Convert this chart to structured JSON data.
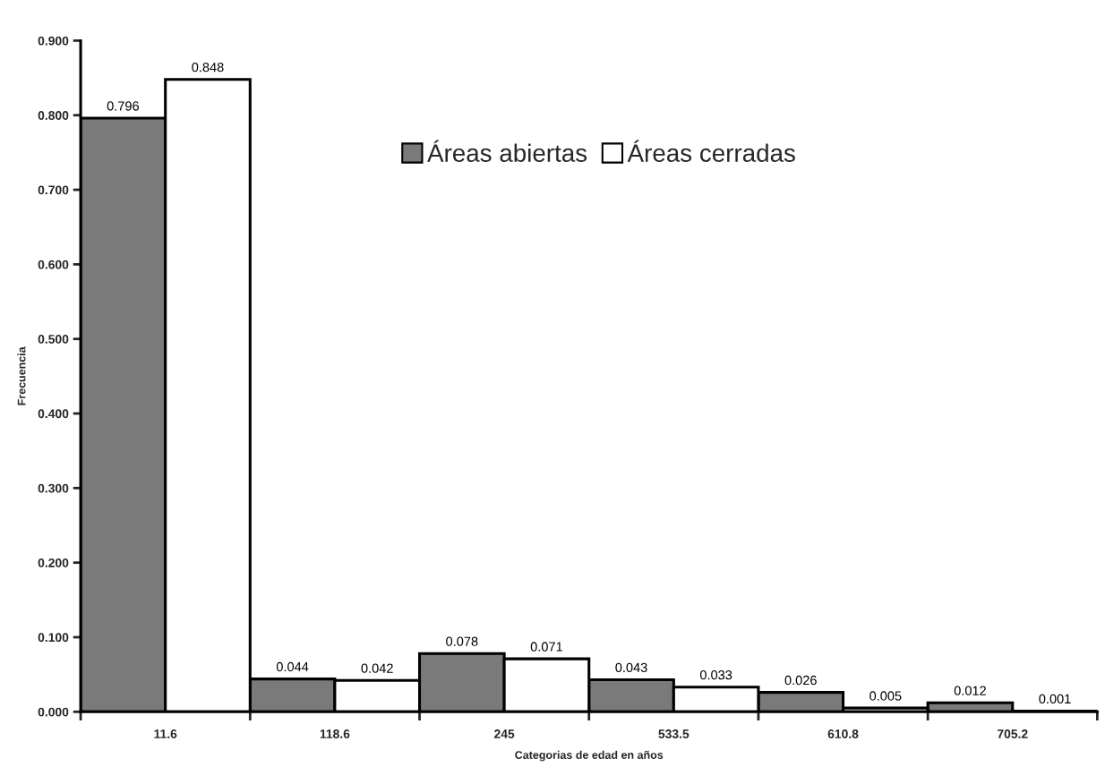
{
  "chart_data": {
    "type": "bar",
    "xlabel": "Categorias de edad en años",
    "ylabel": "Frecuencia",
    "categories": [
      "11.6",
      "118.6",
      "245",
      "533.5",
      "610.8",
      "705.2"
    ],
    "series": [
      {
        "name": "Áreas abiertas",
        "color": "#7a7a7a",
        "values": [
          0.796,
          0.044,
          0.078,
          0.043,
          0.026,
          0.012
        ]
      },
      {
        "name": "Áreas cerradas",
        "color": "#ffffff",
        "values": [
          0.848,
          0.042,
          0.071,
          0.033,
          0.005,
          0.001
        ]
      }
    ],
    "ylim": [
      0,
      0.9
    ],
    "yticks": [
      {
        "value": 0,
        "label": "0.000"
      },
      {
        "value": 0.1,
        "label": "0.100"
      },
      {
        "value": 0.2,
        "label": "0.200"
      },
      {
        "value": 0.3,
        "label": "0.300"
      },
      {
        "value": 0.4,
        "label": "0.400"
      },
      {
        "value": 0.5,
        "label": "0.500"
      },
      {
        "value": 0.6,
        "label": "0.600"
      },
      {
        "value": 0.7,
        "label": "0.700"
      },
      {
        "value": 0.8,
        "label": "0.800"
      },
      {
        "value": 0.9,
        "label": "0.900"
      }
    ],
    "data_labels": true,
    "legend": "top",
    "grid": false
  }
}
